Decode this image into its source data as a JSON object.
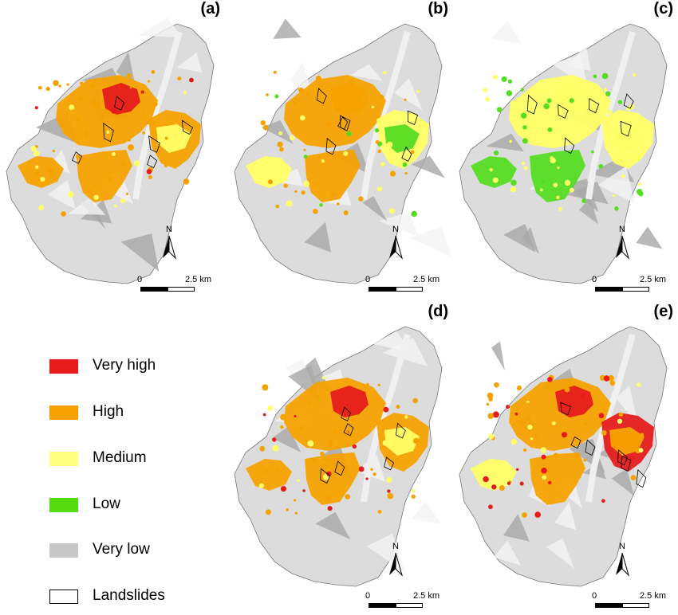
{
  "panels": [
    {
      "label": "(a)",
      "scheme": [
        "#f5a200",
        "#f5a200",
        "#f5a200",
        "#e61c1c",
        "#f5a200",
        "#ffff66"
      ]
    },
    {
      "label": "(b)",
      "scheme": [
        "#f5a200",
        "#ffff66",
        "#f5a200",
        "#f5a200",
        "#ffff66",
        "#55dd22"
      ]
    },
    {
      "label": "(c)",
      "scheme": [
        "#ffff66",
        "#ffff66",
        "#55dd22",
        "#ffff66",
        "#55dd22",
        "#ffff66"
      ]
    },
    {
      "label": "(d)",
      "scheme": [
        "#f5a200",
        "#f5a200",
        "#f5a200",
        "#e61c1c",
        "#f5a200",
        "#ffff66"
      ]
    },
    {
      "label": "(e)",
      "scheme": [
        "#f5a200",
        "#e61c1c",
        "#f5a200",
        "#e61c1c",
        "#ffff66",
        "#f5a200"
      ]
    }
  ],
  "north_label": "N",
  "scale": {
    "start": "0",
    "end": "2.5 km"
  },
  "legend": [
    {
      "label": "Very high",
      "color": "#e61c1c"
    },
    {
      "label": "High",
      "color": "#f5a200"
    },
    {
      "label": "Medium",
      "color": "#ffff80"
    },
    {
      "label": "Low",
      "color": "#55dd11"
    },
    {
      "label": "Very low",
      "color": "#c8c8c8"
    },
    {
      "label": "Landslides",
      "color": "#ffffff"
    }
  ]
}
